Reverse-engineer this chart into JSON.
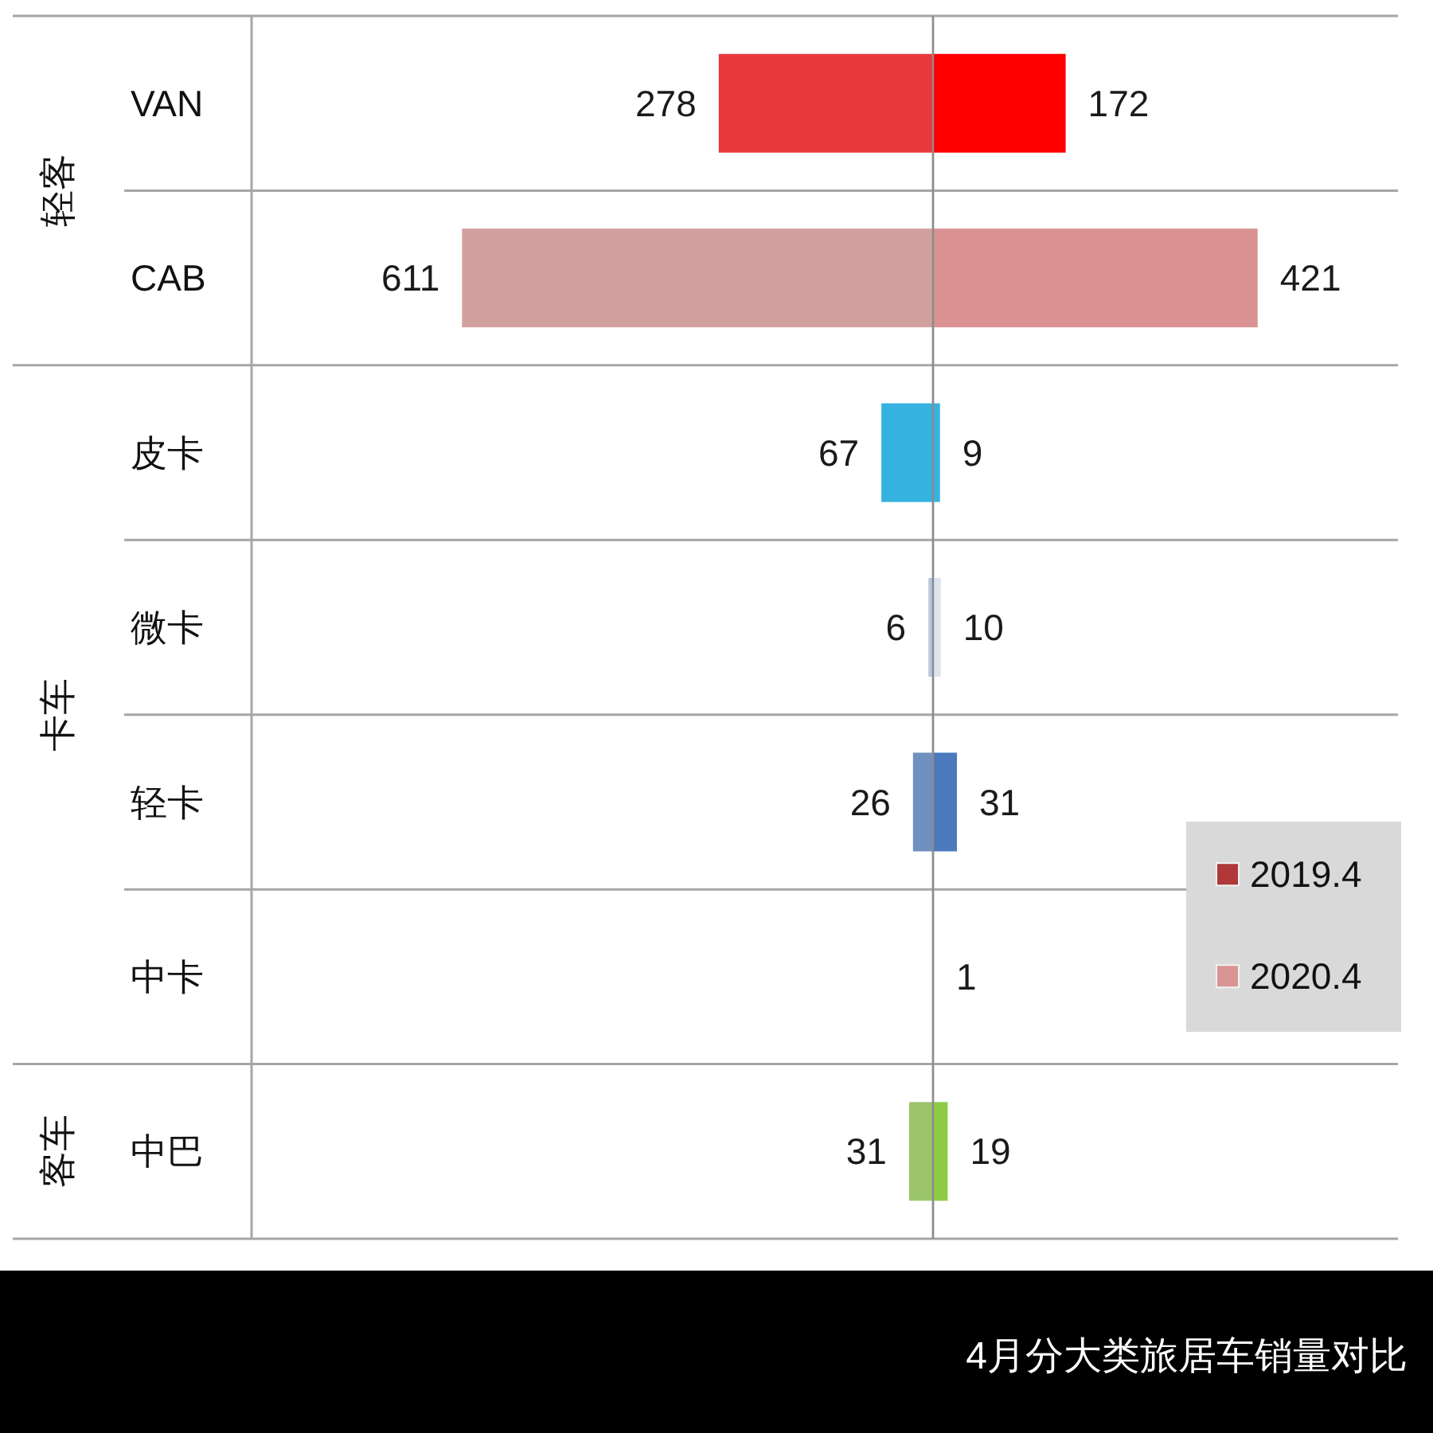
{
  "chart_data": [
    {
      "type": "bar",
      "orientation": "horizontal",
      "categories": [
        "VAN",
        "CAB",
        "皮卡",
        "微卡",
        "轻卡",
        "中卡",
        "中巴"
      ],
      "series": [
        {
          "name": "2019.4",
          "color": "#b03838",
          "colors": [
            "#e8383b",
            "#d0a09f",
            "#35b2e0",
            "#b8c8e0",
            "#7090c0",
            null,
            "#9cc56a"
          ],
          "values": [
            278,
            611,
            67,
            6,
            26,
            null,
            31
          ]
        }
      ],
      "xlim": [
        884,
        0
      ],
      "data_labels": true,
      "annotations": [
        "轻客",
        "卡车",
        "客车"
      ],
      "grid": "y",
      "tick_labels": "y"
    },
    {
      "type": "bar",
      "orientation": "horizontal",
      "title": "4月分大类旅居车销量对比",
      "categories": [
        "VAN",
        "CAB",
        "皮卡",
        "微卡",
        "轻卡",
        "中卡",
        "中巴"
      ],
      "series": [
        {
          "name": "2020.4",
          "color": "#d99494",
          "colors": [
            "#ff0000",
            "#d99191",
            "#35b2e0",
            "#dde4ee",
            "#4a7abd",
            "#e0e0e0",
            "#8ccc44"
          ],
          "values": [
            172,
            421,
            9,
            10,
            31,
            1,
            19
          ]
        }
      ],
      "xlim": [
        0,
        603
      ],
      "data_labels": true,
      "grid": "y",
      "legend": "right",
      "tick_labels": false
    }
  ]
}
